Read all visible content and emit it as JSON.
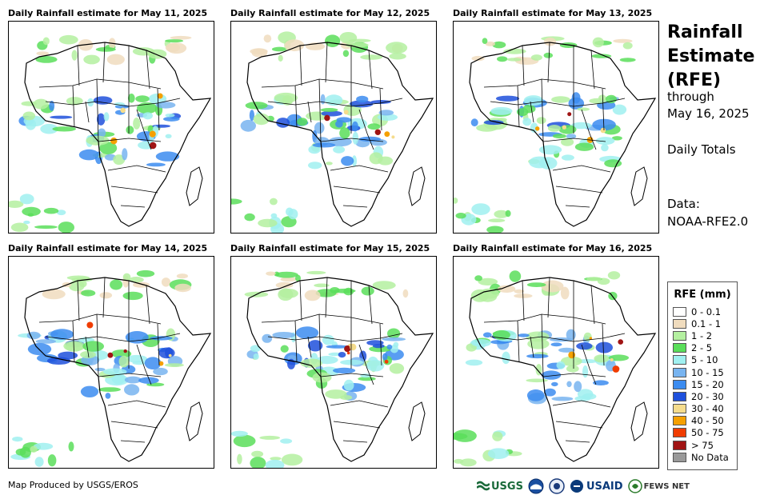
{
  "panels": [
    {
      "title": "Daily Rainfall estimate for May 11, 2025"
    },
    {
      "title": "Daily Rainfall estimate for May 12, 2025"
    },
    {
      "title": "Daily Rainfall estimate for May 13, 2025"
    },
    {
      "title": "Daily Rainfall estimate for May 14, 2025"
    },
    {
      "title": "Daily Rainfall estimate for May 15, 2025"
    },
    {
      "title": "Daily Rainfall estimate for May 16, 2025"
    }
  ],
  "side": {
    "title_line1": "Rainfall",
    "title_line2": "Estimate",
    "title_line3": "(RFE)",
    "through_label": "through",
    "through_date": "May 16, 2025",
    "totals_label": "Daily Totals",
    "data_label": "Data:",
    "data_source": "NOAA-RFE2.0"
  },
  "legend": {
    "title": "RFE (mm)",
    "items": [
      {
        "label": "0 - 0.1",
        "color": "#ffffff"
      },
      {
        "label": "0.1 - 1",
        "color": "#f0dcbe"
      },
      {
        "label": "1 - 2",
        "color": "#b4f0a0"
      },
      {
        "label": "2 - 5",
        "color": "#5ade5a"
      },
      {
        "label": "5 - 10",
        "color": "#a0f0f0"
      },
      {
        "label": "10 - 15",
        "color": "#78b4f0"
      },
      {
        "label": "15 - 20",
        "color": "#3c8cf0"
      },
      {
        "label": "20 - 30",
        "color": "#1e50dc"
      },
      {
        "label": "30 - 40",
        "color": "#f5dc8c"
      },
      {
        "label": "40 - 50",
        "color": "#f5a000"
      },
      {
        "label": "50 - 75",
        "color": "#f03c00"
      },
      {
        "label": "> 75",
        "color": "#a01414"
      },
      {
        "label": "No Data",
        "color": "#999999"
      }
    ]
  },
  "footer": {
    "credit": "Map Produced by USGS/EROS",
    "logo_usgs": "USGS",
    "logo_usaid": "USAID",
    "logo_fews": "FEWS NET"
  }
}
